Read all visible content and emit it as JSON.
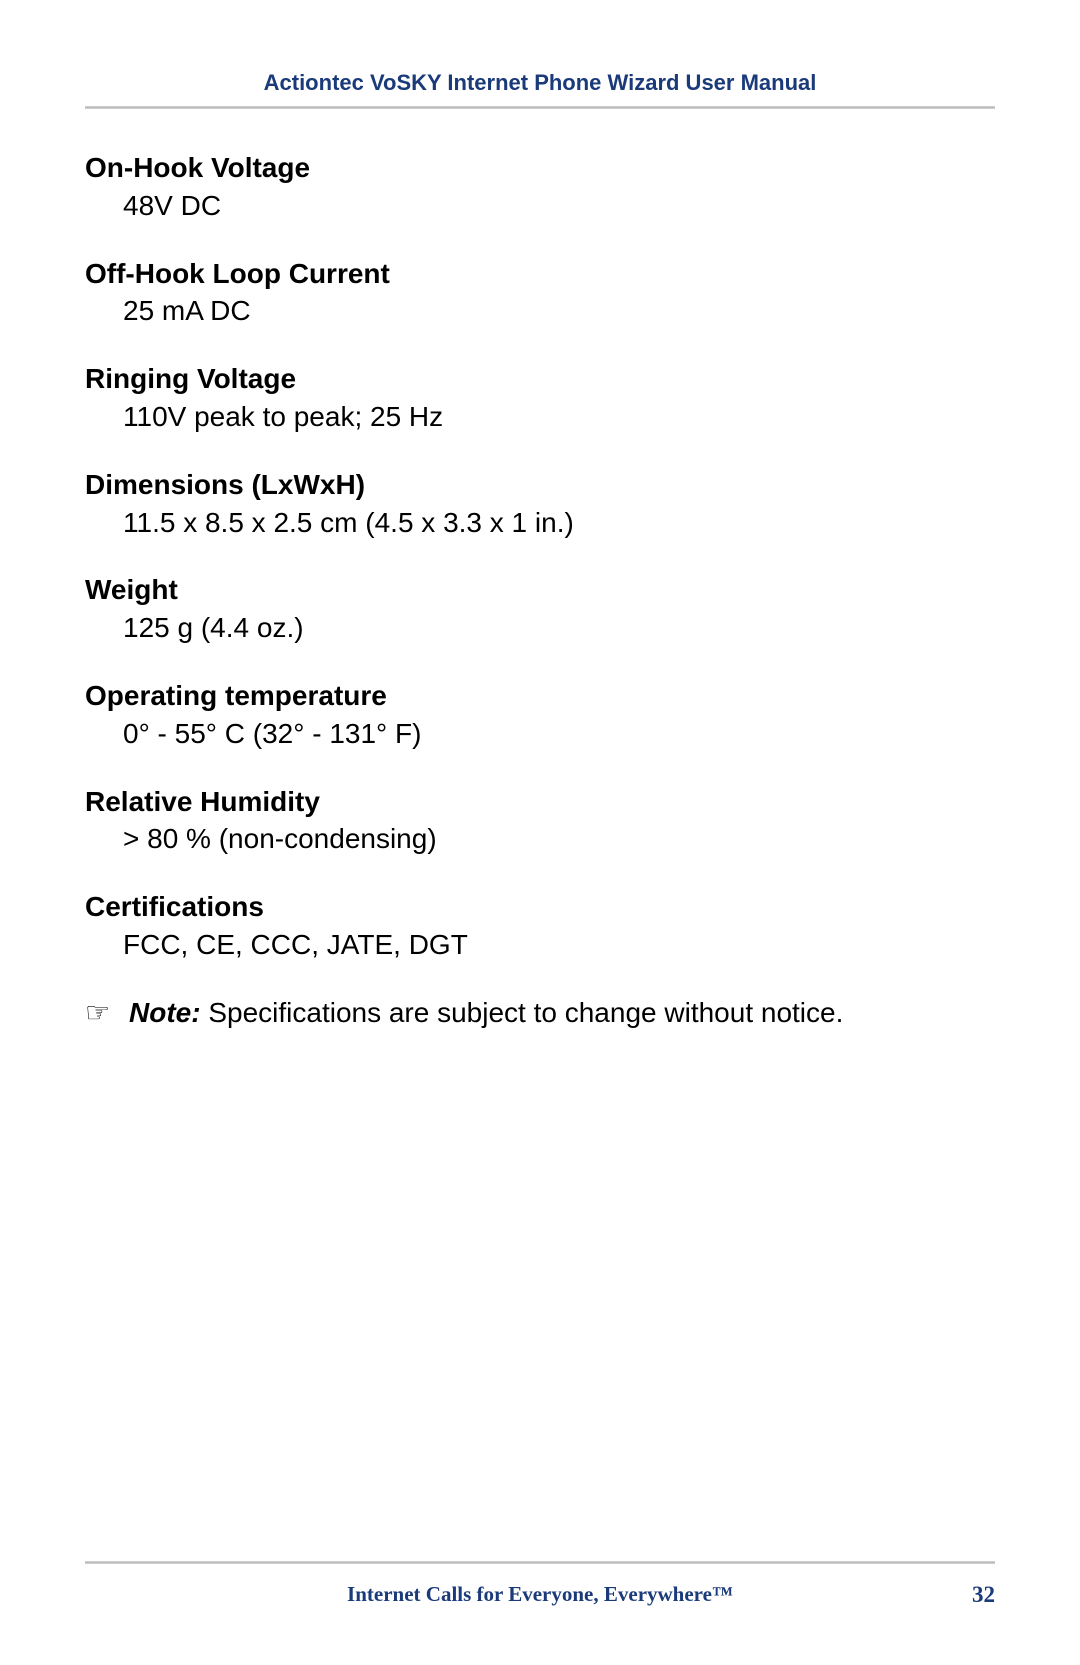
{
  "header_title": "Actiontec VoSKY Internet Phone Wizard User Manual",
  "specs": [
    {
      "label": "On-Hook Voltage",
      "value": "48V DC"
    },
    {
      "label": "Off-Hook Loop Current",
      "value": "25 mA DC"
    },
    {
      "label": "Ringing Voltage",
      "value": "110V peak to peak; 25 Hz"
    },
    {
      "label": "Dimensions (LxWxH)",
      "value": "11.5 x 8.5 x 2.5 cm (4.5 x 3.3 x 1 in.)"
    },
    {
      "label": "Weight",
      "value": "125 g (4.4 oz.)"
    },
    {
      "label": "Operating temperature",
      "value": "0° -  55° C (32° - 131° F)"
    },
    {
      "label": "Relative Humidity",
      "value": "> 80 % (non-condensing)"
    },
    {
      "label": "Certifications",
      "value": "FCC, CE, CCC, JATE, DGT"
    }
  ],
  "note": {
    "icon": "☞",
    "label": "Note:",
    "text": " Specifications are subject to change without notice."
  },
  "footer_text": "Internet Calls for Everyone, Everywhere™",
  "page_number": "32",
  "colors": {
    "header_text": "#1a3a7a",
    "body_text": "#000000",
    "rule": "#c8c8c8",
    "background": "#ffffff"
  },
  "typography": {
    "header_fontsize": 22,
    "body_fontsize": 28,
    "footer_fontsize": 21,
    "body_font": "Verdana",
    "footer_font": "Georgia"
  }
}
